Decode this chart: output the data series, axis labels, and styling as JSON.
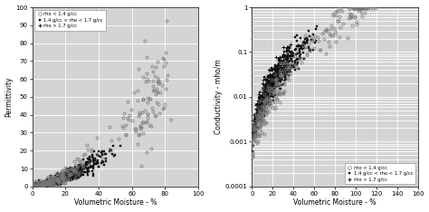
{
  "left_plot": {
    "xlabel": "Volumetric Moisture - %",
    "ylabel": "Permittivity",
    "xlim": [
      0,
      100
    ],
    "ylim": [
      0,
      100
    ],
    "xticks": [
      0,
      20,
      40,
      60,
      80,
      100
    ],
    "yticks": [
      0,
      10,
      20,
      30,
      40,
      50,
      60,
      70,
      80,
      90,
      100
    ],
    "legend_labels": [
      "rho < 1.4 g/cc",
      "1.4 g/cc < rho < 1.7 g/cc",
      "rho > 1.7 g/cc"
    ],
    "legend_loc": "upper left"
  },
  "right_plot": {
    "xlabel": "Volumetric Moisture - %",
    "ylabel": "Conductivity - mho/m",
    "xlim": [
      0,
      160
    ],
    "ylim_log": [
      0.0001,
      1
    ],
    "xticks": [
      0,
      20,
      40,
      60,
      80,
      100,
      120,
      140,
      160
    ],
    "ytick_labels": [
      "0.0001",
      "0.001",
      "0.01",
      "0.1",
      "1"
    ],
    "ytick_vals": [
      0.0001,
      0.001,
      0.01,
      0.1,
      1
    ],
    "legend_labels": [
      "rho < 1.4 g/cc",
      "1.4 g/cc < rho < 1.7 g/cc",
      "rho > 1.7 g/cc"
    ],
    "legend_loc": "lower right"
  },
  "background": "#d4d4d4",
  "grid_color": "#ffffff",
  "seed": 42
}
